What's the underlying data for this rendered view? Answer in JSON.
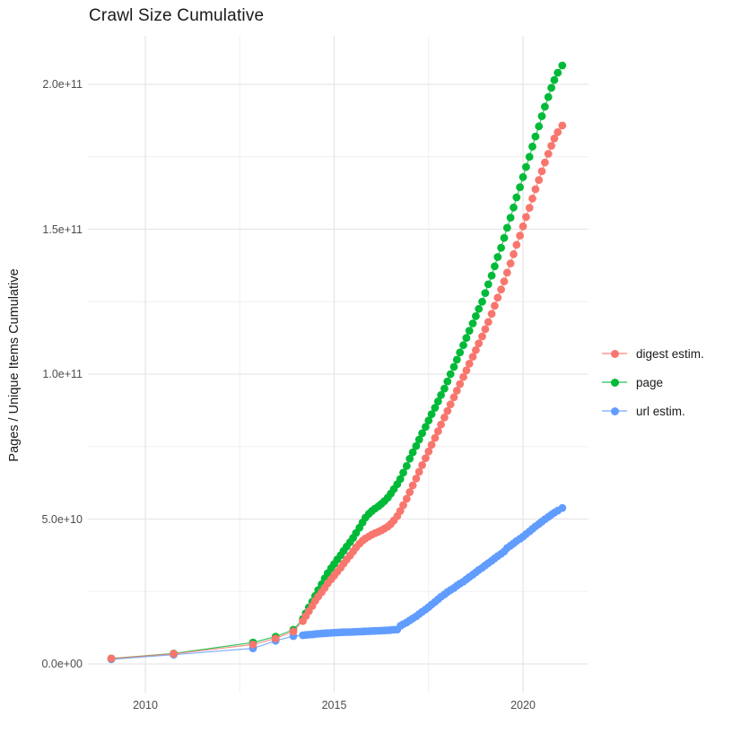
{
  "title": "Crawl Size Cumulative",
  "y_axis": {
    "label": "Pages / Unique Items Cumulative",
    "ticks": [
      {
        "label": "0.0e+00",
        "value_e9": 0
      },
      {
        "label": "5.0e+10",
        "value_e9": 50
      },
      {
        "label": "1.0e+11",
        "value_e9": 100
      },
      {
        "label": "1.5e+11",
        "value_e9": 150
      },
      {
        "label": "2.0e+11",
        "value_e9": 200
      }
    ]
  },
  "x_axis": {
    "ticks": [
      {
        "label": "2010",
        "year": 2010
      },
      {
        "label": "2015",
        "year": 2015
      },
      {
        "label": "2020",
        "year": 2020
      }
    ]
  },
  "legend": {
    "items": [
      {
        "label": "digest estim.",
        "color": "#F8766D"
      },
      {
        "label": "page",
        "color": "#00BA38"
      },
      {
        "label": "url estim.",
        "color": "#619CFF"
      }
    ]
  },
  "chart_data": {
    "type": "scatter",
    "title": "Crawl Size Cumulative",
    "xlabel": "",
    "ylabel": "Pages / Unique Items Cumulative",
    "x_unit": "year",
    "y_unit": "count (values stored in units of 1e9)",
    "xlim": [
      2008.5,
      2021.7
    ],
    "ylim_e9": [
      0,
      217
    ],
    "grid": true,
    "legend_position": "right",
    "x_major": [
      2010,
      2015,
      2020
    ],
    "x_minor": [
      2012.5,
      2017.5
    ],
    "y_major_e9": [
      0,
      50,
      100,
      150,
      200
    ],
    "y_minor_e9": [
      25,
      75,
      125,
      175
    ],
    "marker": "point-with-line",
    "series": [
      {
        "name": "digest estim.",
        "color": "#F8766D",
        "points": [
          [
            2009.1,
            1.9
          ],
          [
            2010.75,
            3.5
          ],
          [
            2012.85,
            6.7
          ],
          [
            2013.45,
            8.8
          ],
          [
            2013.92,
            11.2
          ],
          [
            2014.17,
            14.8
          ],
          [
            2014.25,
            16.5
          ],
          [
            2014.33,
            18.2
          ],
          [
            2014.42,
            20
          ],
          [
            2014.5,
            21.8
          ],
          [
            2014.58,
            23.3
          ],
          [
            2014.67,
            24.8
          ],
          [
            2014.75,
            26.3
          ],
          [
            2014.83,
            27.8
          ],
          [
            2014.92,
            29.2
          ],
          [
            2015,
            30.5
          ],
          [
            2015.08,
            31.8
          ],
          [
            2015.17,
            33.2
          ],
          [
            2015.25,
            34.6
          ],
          [
            2015.33,
            36
          ],
          [
            2015.42,
            37.4
          ],
          [
            2015.5,
            38.8
          ],
          [
            2015.58,
            40.2
          ],
          [
            2015.67,
            41.5
          ],
          [
            2015.75,
            42.5
          ],
          [
            2015.83,
            43.3
          ],
          [
            2015.92,
            44
          ],
          [
            2016,
            44.6
          ],
          [
            2016.08,
            45.1
          ],
          [
            2016.17,
            45.6
          ],
          [
            2016.25,
            46.1
          ],
          [
            2016.33,
            46.7
          ],
          [
            2016.42,
            47.4
          ],
          [
            2016.5,
            48.3
          ],
          [
            2016.58,
            49.5
          ],
          [
            2016.67,
            51
          ],
          [
            2016.75,
            52.8
          ],
          [
            2016.83,
            54.8
          ],
          [
            2016.92,
            57
          ],
          [
            2017,
            59.3
          ],
          [
            2017.08,
            61.6
          ],
          [
            2017.17,
            64
          ],
          [
            2017.25,
            66.3
          ],
          [
            2017.33,
            68.6
          ],
          [
            2017.42,
            71
          ],
          [
            2017.5,
            73.3
          ],
          [
            2017.58,
            75.6
          ],
          [
            2017.67,
            78
          ],
          [
            2017.75,
            80.3
          ],
          [
            2017.83,
            82.6
          ],
          [
            2017.92,
            85
          ],
          [
            2018,
            87.3
          ],
          [
            2018.08,
            89.6
          ],
          [
            2018.17,
            92
          ],
          [
            2018.25,
            94.3
          ],
          [
            2018.33,
            96.6
          ],
          [
            2018.42,
            99
          ],
          [
            2018.5,
            101.3
          ],
          [
            2018.58,
            103.6
          ],
          [
            2018.67,
            106
          ],
          [
            2018.75,
            108.3
          ],
          [
            2018.83,
            110.6
          ],
          [
            2018.92,
            113
          ],
          [
            2019,
            115.5
          ],
          [
            2019.08,
            118
          ],
          [
            2019.17,
            120.8
          ],
          [
            2019.25,
            123.6
          ],
          [
            2019.33,
            126.4
          ],
          [
            2019.42,
            129.2
          ],
          [
            2019.5,
            132
          ],
          [
            2019.58,
            135
          ],
          [
            2019.67,
            138.2
          ],
          [
            2019.75,
            141.4
          ],
          [
            2019.83,
            144.6
          ],
          [
            2019.92,
            147.8
          ],
          [
            2020,
            151
          ],
          [
            2020.08,
            154.2
          ],
          [
            2020.17,
            157.4
          ],
          [
            2020.25,
            160.6
          ],
          [
            2020.33,
            163.8
          ],
          [
            2020.42,
            167
          ],
          [
            2020.5,
            170
          ],
          [
            2020.58,
            173
          ],
          [
            2020.67,
            176
          ],
          [
            2020.75,
            178.8
          ],
          [
            2020.83,
            181.3
          ],
          [
            2020.92,
            183.5
          ],
          [
            2021.04,
            185.8
          ]
        ]
      },
      {
        "name": "page",
        "color": "#00BA38",
        "points": [
          [
            2009.1,
            1.9
          ],
          [
            2010.75,
            3.6
          ],
          [
            2012.85,
            7.4
          ],
          [
            2013.45,
            9.4
          ],
          [
            2013.92,
            11.8
          ],
          [
            2014.17,
            15.5
          ],
          [
            2014.25,
            17.5
          ],
          [
            2014.33,
            19.5
          ],
          [
            2014.42,
            21.5
          ],
          [
            2014.5,
            23.5
          ],
          [
            2014.58,
            25.5
          ],
          [
            2014.67,
            27.5
          ],
          [
            2014.75,
            29.5
          ],
          [
            2014.83,
            31.3
          ],
          [
            2014.92,
            33
          ],
          [
            2015,
            34.5
          ],
          [
            2015.08,
            36
          ],
          [
            2015.17,
            37.5
          ],
          [
            2015.25,
            39
          ],
          [
            2015.33,
            40.5
          ],
          [
            2015.42,
            42
          ],
          [
            2015.5,
            43.5
          ],
          [
            2015.58,
            45.2
          ],
          [
            2015.67,
            47
          ],
          [
            2015.75,
            48.8
          ],
          [
            2015.83,
            50.5
          ],
          [
            2015.92,
            51.8
          ],
          [
            2016,
            52.8
          ],
          [
            2016.08,
            53.6
          ],
          [
            2016.17,
            54.4
          ],
          [
            2016.25,
            55.2
          ],
          [
            2016.33,
            56.2
          ],
          [
            2016.42,
            57.4
          ],
          [
            2016.5,
            58.8
          ],
          [
            2016.58,
            60.3
          ],
          [
            2016.67,
            62
          ],
          [
            2016.75,
            63.8
          ],
          [
            2016.83,
            66
          ],
          [
            2016.92,
            68.3
          ],
          [
            2017,
            70.8
          ],
          [
            2017.08,
            73
          ],
          [
            2017.17,
            75.2
          ],
          [
            2017.25,
            77.4
          ],
          [
            2017.33,
            79.6
          ],
          [
            2017.42,
            81.8
          ],
          [
            2017.5,
            84
          ],
          [
            2017.58,
            86.2
          ],
          [
            2017.67,
            88.4
          ],
          [
            2017.75,
            90.6
          ],
          [
            2017.83,
            92.8
          ],
          [
            2017.92,
            95
          ],
          [
            2018,
            97.5
          ],
          [
            2018.08,
            100
          ],
          [
            2018.17,
            102.5
          ],
          [
            2018.25,
            105
          ],
          [
            2018.33,
            107.5
          ],
          [
            2018.42,
            110
          ],
          [
            2018.5,
            112.5
          ],
          [
            2018.58,
            115
          ],
          [
            2018.67,
            117.5
          ],
          [
            2018.75,
            120
          ],
          [
            2018.83,
            122.5
          ],
          [
            2018.92,
            125
          ],
          [
            2019,
            128
          ],
          [
            2019.08,
            131
          ],
          [
            2019.17,
            134
          ],
          [
            2019.25,
            137.2
          ],
          [
            2019.33,
            140.4
          ],
          [
            2019.42,
            143.6
          ],
          [
            2019.5,
            147
          ],
          [
            2019.58,
            150.5
          ],
          [
            2019.67,
            154
          ],
          [
            2019.75,
            157.5
          ],
          [
            2019.83,
            161
          ],
          [
            2019.92,
            164.5
          ],
          [
            2020,
            168
          ],
          [
            2020.08,
            171.5
          ],
          [
            2020.17,
            175
          ],
          [
            2020.25,
            178.5
          ],
          [
            2020.33,
            182
          ],
          [
            2020.42,
            185.5
          ],
          [
            2020.5,
            189
          ],
          [
            2020.58,
            192.3
          ],
          [
            2020.67,
            195.6
          ],
          [
            2020.75,
            198.8
          ],
          [
            2020.83,
            201.5
          ],
          [
            2020.92,
            204
          ],
          [
            2021.04,
            206.5
          ]
        ]
      },
      {
        "name": "url estim.",
        "color": "#619CFF",
        "points": [
          [
            2009.1,
            1.6
          ],
          [
            2010.75,
            3.2
          ],
          [
            2012.85,
            5.4
          ],
          [
            2013.45,
            8
          ],
          [
            2013.92,
            9.6
          ],
          [
            2014.17,
            9.9
          ],
          [
            2014.25,
            10
          ],
          [
            2014.33,
            10.1
          ],
          [
            2014.42,
            10.2
          ],
          [
            2014.5,
            10.3
          ],
          [
            2014.58,
            10.4
          ],
          [
            2014.67,
            10.5
          ],
          [
            2014.75,
            10.6
          ],
          [
            2014.83,
            10.65
          ],
          [
            2014.92,
            10.7
          ],
          [
            2015,
            10.8
          ],
          [
            2015.08,
            10.85
          ],
          [
            2015.17,
            10.9
          ],
          [
            2015.25,
            10.95
          ],
          [
            2015.33,
            11
          ],
          [
            2015.42,
            11
          ],
          [
            2015.5,
            11.05
          ],
          [
            2015.58,
            11.1
          ],
          [
            2015.67,
            11.15
          ],
          [
            2015.75,
            11.2
          ],
          [
            2015.83,
            11.25
          ],
          [
            2015.92,
            11.3
          ],
          [
            2016,
            11.35
          ],
          [
            2016.08,
            11.4
          ],
          [
            2016.17,
            11.45
          ],
          [
            2016.25,
            11.5
          ],
          [
            2016.33,
            11.55
          ],
          [
            2016.42,
            11.6
          ],
          [
            2016.5,
            11.7
          ],
          [
            2016.58,
            11.8
          ],
          [
            2016.67,
            11.9
          ],
          [
            2016.76,
            13.2
          ],
          [
            2016.83,
            13.7
          ],
          [
            2016.92,
            14.3
          ],
          [
            2017,
            15
          ],
          [
            2017.08,
            15.7
          ],
          [
            2017.17,
            16.4
          ],
          [
            2017.25,
            17.2
          ],
          [
            2017.33,
            18
          ],
          [
            2017.42,
            18.8
          ],
          [
            2017.5,
            19.6
          ],
          [
            2017.58,
            20.5
          ],
          [
            2017.67,
            21.4
          ],
          [
            2017.75,
            22.3
          ],
          [
            2017.83,
            23.2
          ],
          [
            2017.92,
            24
          ],
          [
            2018,
            24.8
          ],
          [
            2018.08,
            25.5
          ],
          [
            2018.17,
            26.2
          ],
          [
            2018.25,
            27
          ],
          [
            2018.33,
            27.7
          ],
          [
            2018.42,
            28.4
          ],
          [
            2018.5,
            29.2
          ],
          [
            2018.58,
            30
          ],
          [
            2018.67,
            30.8
          ],
          [
            2018.75,
            31.6
          ],
          [
            2018.83,
            32.4
          ],
          [
            2018.92,
            33.2
          ],
          [
            2019,
            34
          ],
          [
            2019.08,
            34.8
          ],
          [
            2019.17,
            35.6
          ],
          [
            2019.25,
            36.4
          ],
          [
            2019.33,
            37.2
          ],
          [
            2019.42,
            38
          ],
          [
            2019.5,
            38.8
          ],
          [
            2019.58,
            40
          ],
          [
            2019.67,
            40.8
          ],
          [
            2019.75,
            41.6
          ],
          [
            2019.83,
            42.4
          ],
          [
            2019.92,
            43.2
          ],
          [
            2020,
            43.9
          ],
          [
            2020.08,
            44.8
          ],
          [
            2020.17,
            45.7
          ],
          [
            2020.25,
            46.6
          ],
          [
            2020.33,
            47.5
          ],
          [
            2020.42,
            48.3
          ],
          [
            2020.5,
            49.1
          ],
          [
            2020.58,
            49.9
          ],
          [
            2020.67,
            50.7
          ],
          [
            2020.75,
            51.5
          ],
          [
            2020.83,
            52.2
          ],
          [
            2020.92,
            52.9
          ],
          [
            2021.04,
            53.8
          ]
        ]
      }
    ]
  }
}
